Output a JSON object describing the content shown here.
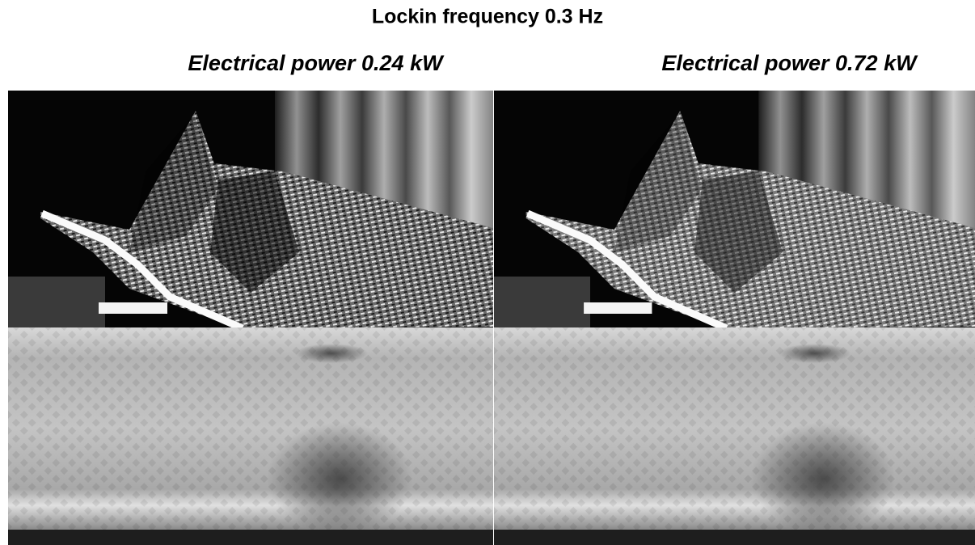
{
  "title": "Lockin frequency 0.3 Hz",
  "panels": [
    {
      "title": "Electrical power 0.24 kW"
    },
    {
      "title": "Electrical power 0.72 kW"
    }
  ]
}
